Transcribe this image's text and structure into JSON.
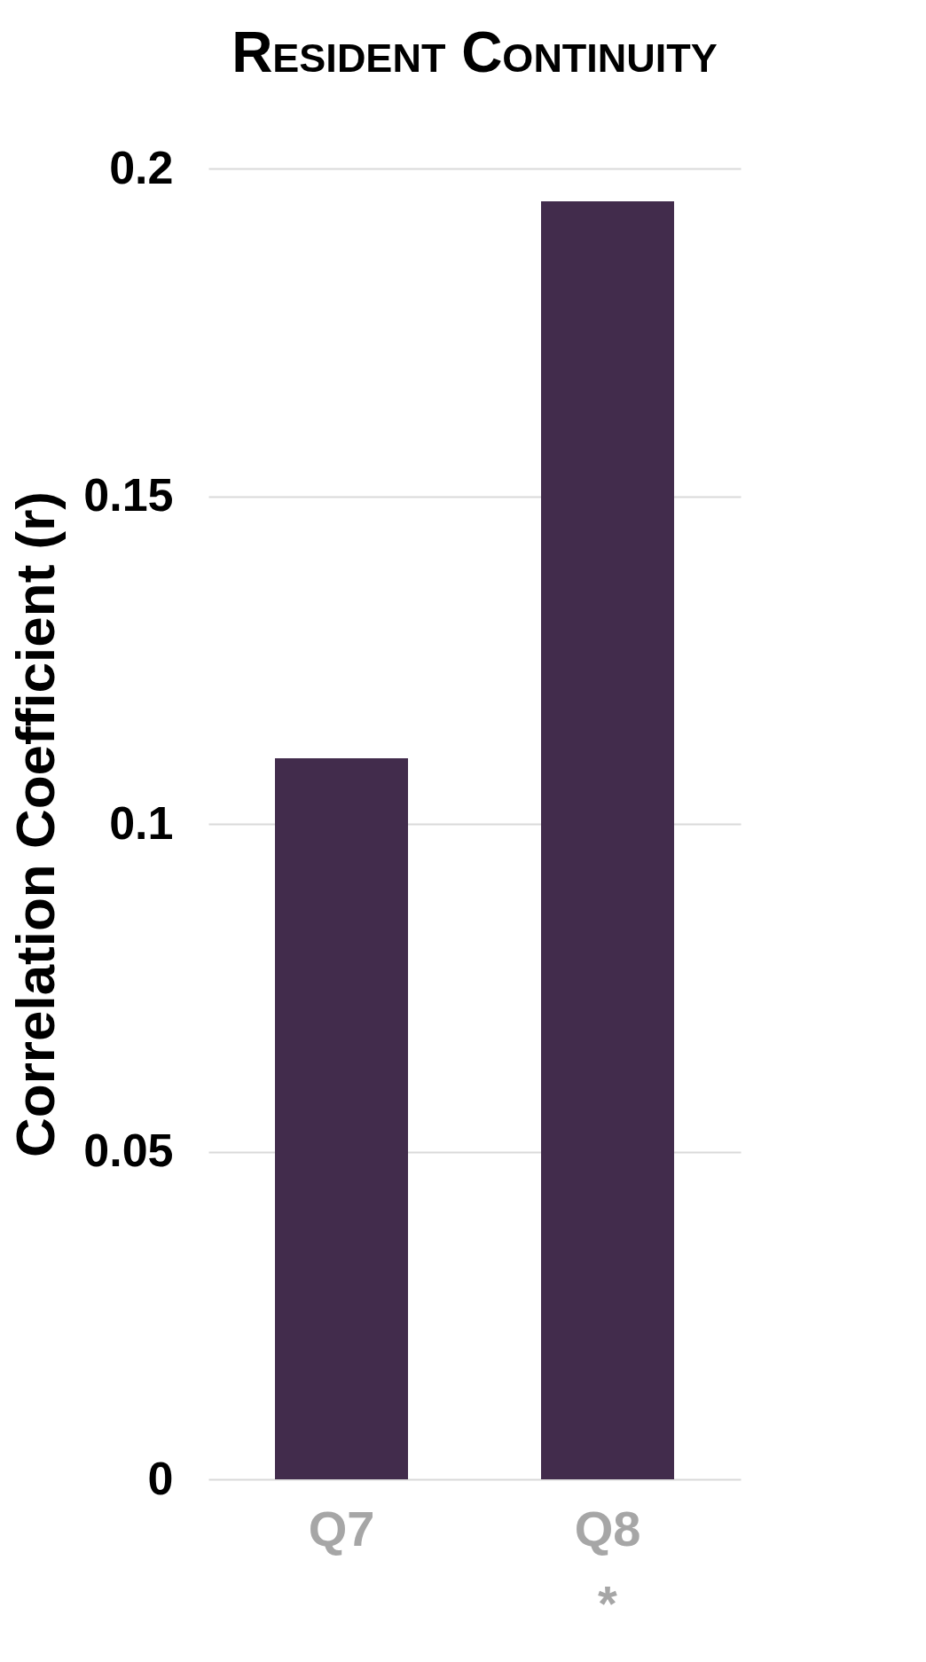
{
  "chart_data": {
    "type": "bar",
    "title": "Resident Continuity",
    "ylabel": "Correlation Coefficient (r)",
    "categories": [
      "Q7",
      "Q8"
    ],
    "values": [
      0.11,
      0.195
    ],
    "color": "#422c4c",
    "ylim": [
      0,
      0.2
    ],
    "yticks": [
      0,
      0.05,
      0.1,
      0.15,
      0.2
    ],
    "grid": "y",
    "annotations": [
      "*"
    ]
  }
}
